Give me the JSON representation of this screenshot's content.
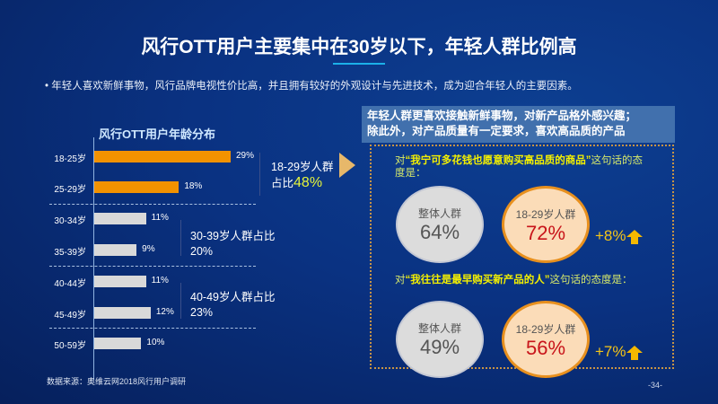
{
  "title": "风行OTT用户主要集中在30岁以下，年轻人群比例高",
  "bullet": "年轻人喜欢新鲜事物，风行品牌电视性价比高，并且拥有较好的外观设计与先进技术，成为迎合年轻人的主要因素。",
  "chart_data": {
    "type": "bar",
    "title": "风行OTT用户年龄分布",
    "orientation": "horizontal",
    "categories": [
      "18-25岁",
      "25-29岁",
      "30-34岁",
      "35-39岁",
      "40-44岁",
      "45-49岁",
      "50-59岁"
    ],
    "values": [
      29,
      18,
      11,
      9,
      11,
      12,
      10
    ],
    "value_labels": [
      "29%",
      "18%",
      "11%",
      "9%",
      "11%",
      "12%",
      "10%"
    ],
    "highlight_color": "#f39200",
    "default_color": "#d9d9d9"
  },
  "groups": [
    {
      "line1": "18-29岁人群",
      "line2_prefix": "占比",
      "line2_value": "48%"
    },
    {
      "line1": "30-39岁人群占比",
      "line2": "20%"
    },
    {
      "line1": "40-49岁人群占比",
      "line2": "23%"
    }
  ],
  "right": {
    "header_line1": "年轻人群更喜欢接触新鲜事物，对新产品格外感兴趣；",
    "header_line2": "除此外，对产品质量有一定要求，喜欢高品质的产品",
    "q1": {
      "pre": "对",
      "quote": "“我宁可多花钱也愿意购买高品质的商品”",
      "post": "这句话的态度是：",
      "overall_label": "整体人群",
      "overall_value": "64%",
      "young_label": "18-29岁人群",
      "young_value": "72%",
      "increase": "+8%"
    },
    "q2": {
      "pre": "对",
      "quote": "“我往往是最早购买新产品的人”",
      "post": "这句话的态度是：",
      "overall_label": "整体人群",
      "overall_value": "49%",
      "young_label": "18-29岁人群",
      "young_value": "56%",
      "increase": "+7%"
    }
  },
  "source": "数据来源：奥维云网2018风行用户调研",
  "page": "-34-"
}
